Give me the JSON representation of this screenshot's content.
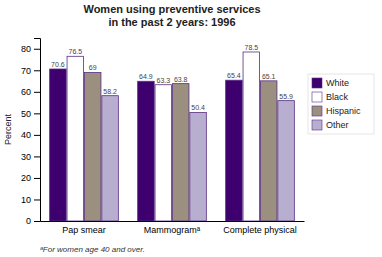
{
  "chart_data": {
    "type": "bar",
    "title": "Women using preventive services\nin the past 2 years: 1996",
    "categories": [
      "Pap smear",
      "Mammogramᵃ",
      "Complete physical"
    ],
    "series": [
      {
        "name": "White",
        "color": "#3d006e",
        "values": [
          70.6,
          64.9,
          65.4
        ]
      },
      {
        "name": "Black",
        "color": "#ffffff",
        "values": [
          76.5,
          63.3,
          78.5
        ]
      },
      {
        "name": "Hispanic",
        "color": "#9b9080",
        "values": [
          69.0,
          63.8,
          65.1
        ]
      },
      {
        "name": "Other",
        "color": "#b8afd0",
        "values": [
          58.2,
          50.4,
          55.9
        ]
      }
    ],
    "ylabel": "Percent",
    "ylim": [
      0,
      85
    ],
    "yticks": [
      0,
      10,
      20,
      30,
      40,
      50,
      60,
      70,
      80
    ],
    "data_labels": true,
    "grid": false,
    "legend": "right",
    "annotations": [
      "ᵃFor women age 40 and over."
    ]
  }
}
